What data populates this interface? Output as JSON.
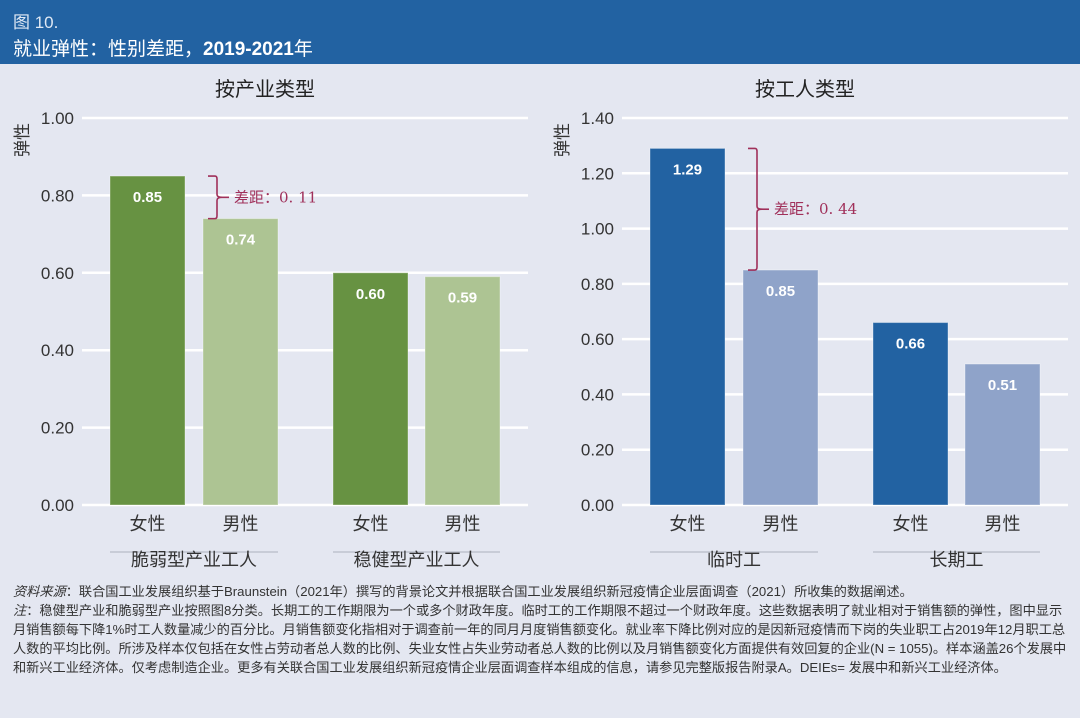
{
  "header": {
    "figure_number": "图 10.",
    "title_prefix": "就业弹性：性别差距，",
    "title_years": "2019-2021",
    "title_suffix": "年"
  },
  "colors": {
    "header_bg": "#2262a2",
    "background": "#e4e7f1",
    "green_female": "#679242",
    "green_male": "#adc493",
    "blue_female": "#2262a2",
    "blue_male": "#8fa3c9",
    "gap_bracket": "#a0305a"
  },
  "chart_data": [
    {
      "type": "bar",
      "title": "按产业类型",
      "ylabel": "弹性",
      "xlabel": "",
      "ylim": [
        0,
        1.0
      ],
      "yticks": [
        0.0,
        0.2,
        0.4,
        0.6,
        0.8,
        1.0
      ],
      "ytick_labels": [
        "0.00",
        "0.20",
        "0.40",
        "0.60",
        "0.80",
        "1.00"
      ],
      "grid": true,
      "groups": [
        {
          "label": "脆弱型产业工人",
          "bars": [
            {
              "category": "女性",
              "value": 0.85,
              "label": "0.85",
              "series": "female"
            },
            {
              "category": "男性",
              "value": 0.74,
              "label": "0.74",
              "series": "male"
            }
          ],
          "gap_annotation": {
            "label": "差距：0. 11",
            "from": 0.85,
            "to": 0.74
          }
        },
        {
          "label": "稳健型产业工人",
          "bars": [
            {
              "category": "女性",
              "value": 0.6,
              "label": "0.60",
              "series": "female"
            },
            {
              "category": "男性",
              "value": 0.59,
              "label": "0.59",
              "series": "male"
            }
          ]
        }
      ]
    },
    {
      "type": "bar",
      "title": "按工人类型",
      "ylabel": "弹性",
      "xlabel": "",
      "ylim": [
        0,
        1.4
      ],
      "yticks": [
        0.0,
        0.2,
        0.4,
        0.6,
        0.8,
        1.0,
        1.2,
        1.4
      ],
      "ytick_labels": [
        "0.00",
        "0.20",
        "0.40",
        "0.60",
        "0.80",
        "1.00",
        "1.20",
        "1.40"
      ],
      "grid": true,
      "groups": [
        {
          "label": "临时工",
          "bars": [
            {
              "category": "女性",
              "value": 1.29,
              "label": "1.29",
              "series": "female"
            },
            {
              "category": "男性",
              "value": 0.85,
              "label": "0.85",
              "series": "male"
            }
          ],
          "gap_annotation": {
            "label": "差距：0. 44",
            "from": 1.29,
            "to": 0.85
          }
        },
        {
          "label": "长期工",
          "bars": [
            {
              "category": "女性",
              "value": 0.66,
              "label": "0.66",
              "series": "female"
            },
            {
              "category": "男性",
              "value": 0.51,
              "label": "0.51",
              "series": "male"
            }
          ]
        }
      ]
    }
  ],
  "notes": {
    "source_lead": "资料来源",
    "source_text": "：联合国工业发展组织基于Braunstein（2021年）撰写的背景论文并根据联合国工业发展组织新冠疫情企业层面调查（2021）所收集的数据阐述。",
    "note_lead": "注",
    "note_text": "：稳健型产业和脆弱型产业按照图8分类。长期工的工作期限为一个或多个财政年度。临时工的工作期限不超过一个财政年度。这些数据表明了就业相对于销售额的弹性，图中显示月销售额每下降1%时工人数量减少的百分比。月销售额变化指相对于调查前一年的同月月度销售额变化。就业率下降比例对应的是因新冠疫情而下岗的失业职工占2019年12月职工总人数的平均比例。所涉及样本仅包括在女性占劳动者总人数的比例、失业女性占失业劳动者总人数的比例以及月销售额变化方面提供有效回复的企业(N = 1055)。样本涵盖26个发展中和新兴工业经济体。仅考虑制造企业。更多有关联合国工业发展组织新冠疫情企业层面调查样本组成的信息，请参见完整版报告附录A。DEIEs= 发展中和新兴工业经济体。"
  }
}
